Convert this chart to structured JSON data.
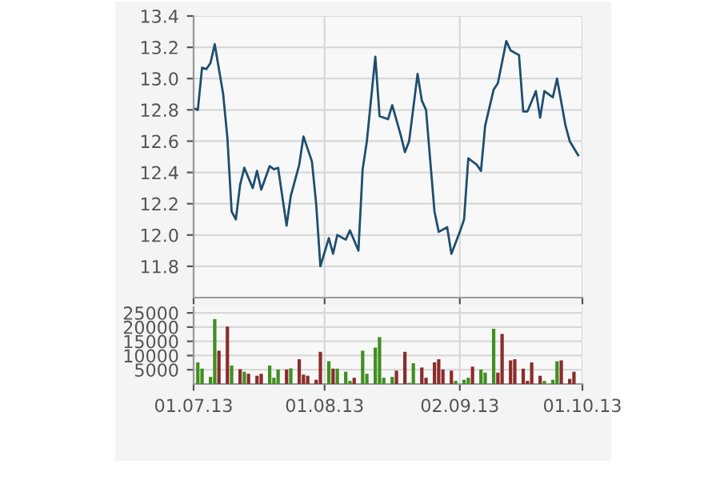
{
  "chart_data": [
    {
      "type": "line",
      "color": "#1f4e6e",
      "grid": true,
      "tick_labels": "y",
      "x": [
        "2013-07-01",
        "2013-07-02",
        "2013-07-03",
        "2013-07-04",
        "2013-07-05",
        "2013-07-06",
        "2013-07-08",
        "2013-07-09",
        "2013-07-10",
        "2013-07-11",
        "2013-07-12",
        "2013-07-13",
        "2013-07-15",
        "2013-07-16",
        "2013-07-17",
        "2013-07-19",
        "2013-07-20",
        "2013-07-21",
        "2013-07-23",
        "2013-07-24",
        "2013-07-26",
        "2013-07-27",
        "2013-07-29",
        "2013-07-30",
        "2013-07-31",
        "2013-08-02",
        "2013-08-03",
        "2013-08-04",
        "2013-08-06",
        "2013-08-07",
        "2013-08-09",
        "2013-08-10",
        "2013-08-11",
        "2013-08-13",
        "2013-08-14",
        "2013-08-16",
        "2013-08-17",
        "2013-08-19",
        "2013-08-20",
        "2013-08-21",
        "2013-08-23",
        "2013-08-24",
        "2013-08-25",
        "2013-08-27",
        "2013-08-28",
        "2013-08-30",
        "2013-08-31",
        "2013-09-02",
        "2013-09-03",
        "2013-09-04",
        "2013-09-06",
        "2013-09-07",
        "2013-09-08",
        "2013-09-10",
        "2013-09-11",
        "2013-09-13",
        "2013-09-14",
        "2013-09-16",
        "2013-09-17",
        "2013-09-18",
        "2013-09-20",
        "2013-09-21",
        "2013-09-22",
        "2013-09-24",
        "2013-09-25",
        "2013-09-27",
        "2013-09-28",
        "2013-09-30"
      ],
      "values": [
        12.81,
        12.8,
        13.07,
        13.06,
        13.1,
        13.22,
        12.9,
        12.62,
        12.15,
        12.1,
        12.32,
        12.43,
        12.3,
        12.41,
        12.29,
        12.44,
        12.42,
        12.43,
        12.06,
        12.25,
        12.45,
        12.63,
        12.47,
        12.2,
        11.8,
        11.98,
        11.88,
        12.0,
        11.97,
        12.03,
        11.9,
        12.42,
        12.6,
        13.14,
        12.76,
        12.74,
        12.83,
        12.64,
        12.53,
        12.6,
        13.03,
        12.86,
        12.8,
        12.15,
        12.02,
        12.05,
        11.88,
        12.02,
        12.1,
        12.49,
        12.45,
        12.41,
        12.7,
        12.93,
        12.97,
        13.24,
        13.18,
        13.15,
        12.79,
        12.79,
        12.92,
        12.75,
        12.92,
        12.88,
        13.0,
        12.7,
        12.6,
        12.51
      ],
      "xlim": [
        "2013-07-01",
        "2013-10-01"
      ],
      "xticks": [
        "2013-07-01",
        "2013-08-01",
        "2013-09-02",
        "2013-10-01"
      ],
      "ylim": [
        11.6,
        13.4
      ],
      "yticks": [
        {
          "value": 11.8,
          "label": "11.8"
        },
        {
          "value": 12.0,
          "label": "12.0"
        },
        {
          "value": 12.2,
          "label": "12.2"
        },
        {
          "value": 12.4,
          "label": "12.4"
        },
        {
          "value": 12.6,
          "label": "12.6"
        },
        {
          "value": 12.8,
          "label": "12.8"
        },
        {
          "value": 13.0,
          "label": "13.0"
        },
        {
          "value": 13.2,
          "label": "13.2"
        },
        {
          "value": 13.4,
          "label": "13.4"
        }
      ]
    },
    {
      "type": "bar",
      "grid": true,
      "x": [
        "2013-07-02",
        "2013-07-03",
        "2013-07-05",
        "2013-07-06",
        "2013-07-07",
        "2013-07-09",
        "2013-07-10",
        "2013-07-12",
        "2013-07-13",
        "2013-07-14",
        "2013-07-16",
        "2013-07-17",
        "2013-07-19",
        "2013-07-20",
        "2013-07-21",
        "2013-07-23",
        "2013-07-24",
        "2013-07-26",
        "2013-07-27",
        "2013-07-28",
        "2013-07-30",
        "2013-07-31",
        "2013-08-02",
        "2013-08-03",
        "2013-08-04",
        "2013-08-06",
        "2013-08-07",
        "2013-08-08",
        "2013-08-10",
        "2013-08-11",
        "2013-08-13",
        "2013-08-14",
        "2013-08-15",
        "2013-08-17",
        "2013-08-18",
        "2013-08-20",
        "2013-08-21",
        "2013-08-22",
        "2013-08-24",
        "2013-08-25",
        "2013-08-27",
        "2013-08-28",
        "2013-08-29",
        "2013-08-31",
        "2013-09-01",
        "2013-09-03",
        "2013-09-04",
        "2013-09-05",
        "2013-09-07",
        "2013-09-08",
        "2013-09-10",
        "2013-09-11",
        "2013-09-12",
        "2013-09-14",
        "2013-09-15",
        "2013-09-17",
        "2013-09-18",
        "2013-09-19",
        "2013-09-21",
        "2013-09-22",
        "2013-09-24",
        "2013-09-25",
        "2013-09-26",
        "2013-09-28",
        "2013-09-29"
      ],
      "values": [
        7600,
        5400,
        2500,
        22800,
        11700,
        20200,
        6500,
        5200,
        4300,
        3600,
        2900,
        3600,
        6500,
        2200,
        5100,
        5100,
        5500,
        8700,
        3300,
        2900,
        1500,
        11300,
        8000,
        5400,
        5400,
        4300,
        1100,
        2200,
        11700,
        3600,
        12800,
        16500,
        2200,
        2500,
        4700,
        11300,
        400,
        7300,
        5800,
        2200,
        7600,
        8700,
        5100,
        4700,
        1100,
        1500,
        2200,
        6100,
        5100,
        4000,
        19400,
        4000,
        17600,
        8300,
        8700,
        5400,
        1100,
        7600,
        2900,
        1100,
        1500,
        8000,
        8300,
        1800,
        4300
      ],
      "colors": [
        "#3f8f1f",
        "#3f8f1f",
        "#3f8f1f",
        "#3f8f1f",
        "#8b2c2c",
        "#8b2c2c",
        "#3f8f1f",
        "#8b2c2c",
        "#3f8f1f",
        "#8b2c2c",
        "#8b2c2c",
        "#8b2c2c",
        "#3f8f1f",
        "#3f8f1f",
        "#3f8f1f",
        "#8b2c2c",
        "#3f8f1f",
        "#8b2c2c",
        "#8b2c2c",
        "#8b2c2c",
        "#8b2c2c",
        "#8b2c2c",
        "#3f8f1f",
        "#8b2c2c",
        "#3f8f1f",
        "#3f8f1f",
        "#3f8f1f",
        "#8b2c2c",
        "#3f8f1f",
        "#3f8f1f",
        "#3f8f1f",
        "#3f8f1f",
        "#3f8f1f",
        "#3f8f1f",
        "#8b2c2c",
        "#8b2c2c",
        "#3f8f1f",
        "#3f8f1f",
        "#8b2c2c",
        "#8b2c2c",
        "#8b2c2c",
        "#8b2c2c",
        "#8b2c2c",
        "#8b2c2c",
        "#3f8f1f",
        "#3f8f1f",
        "#3f8f1f",
        "#8b2c2c",
        "#3f8f1f",
        "#3f8f1f",
        "#3f8f1f",
        "#8b2c2c",
        "#8b2c2c",
        "#8b2c2c",
        "#8b2c2c",
        "#8b2c2c",
        "#8b2c2c",
        "#8b2c2c",
        "#8b2c2c",
        "#3f8f1f",
        "#3f8f1f",
        "#3f8f1f",
        "#8b2c2c",
        "#8b2c2c",
        "#8b2c2c"
      ],
      "xlim": [
        "2013-07-01",
        "2013-10-01"
      ],
      "xticks": [
        {
          "value": "2013-07-01",
          "label": "01.07.13"
        },
        {
          "value": "2013-08-01",
          "label": "01.08.13"
        },
        {
          "value": "2013-09-02",
          "label": "02.09.13"
        },
        {
          "value": "2013-10-01",
          "label": "01.10.13"
        }
      ],
      "ylim": [
        0,
        27000
      ],
      "yticks": [
        5000,
        10000,
        15000,
        20000,
        25000
      ]
    }
  ]
}
